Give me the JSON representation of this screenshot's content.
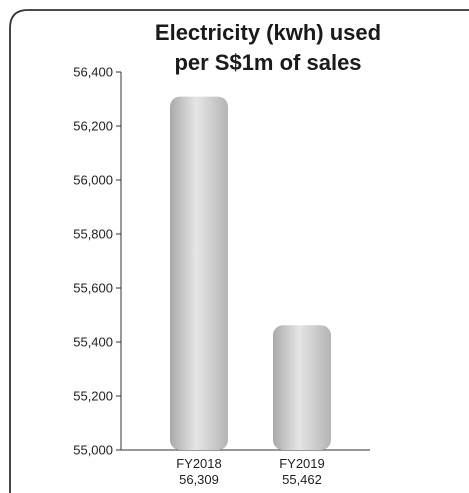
{
  "chart_data": {
    "type": "bar",
    "title_lines": [
      "Electricity (kwh) used",
      "per S$1m of sales"
    ],
    "categories": [
      "FY2018",
      "FY2019"
    ],
    "values": [
      56309,
      55462
    ],
    "value_labels": [
      "56,309",
      "55,462"
    ],
    "ylim": [
      55000,
      56400
    ],
    "y_ticks": [
      55000,
      55200,
      55400,
      55600,
      55800,
      56000,
      56200,
      56400
    ],
    "y_tick_labels": [
      "55,000",
      "55,200",
      "55,400",
      "55,600",
      "55,800",
      "56,000",
      "56,200",
      "56,400"
    ],
    "grid": false,
    "legend": "none",
    "colors": {
      "bar_light": "#e4e4e4",
      "bar_mid": "#c9c9c9",
      "bar_dark": "#a6a6a6",
      "axis": "#333333",
      "frame": "#333333"
    }
  }
}
